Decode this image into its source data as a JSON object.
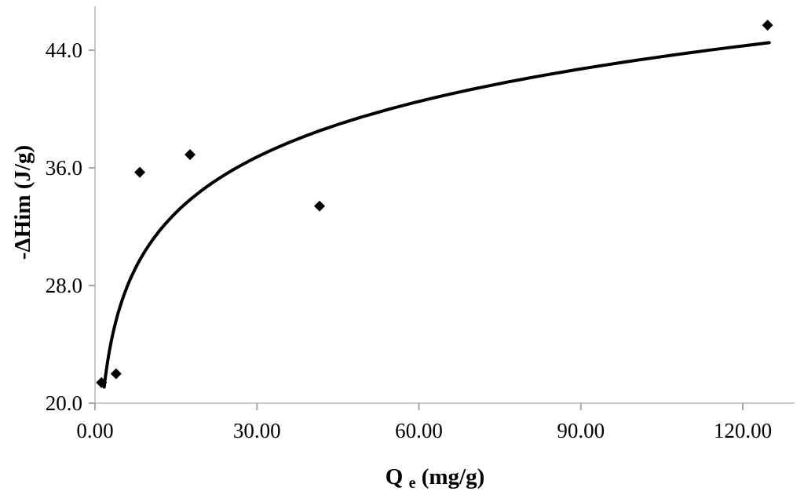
{
  "chart_data": {
    "type": "scatter",
    "title": "",
    "xlabel_main": "Q",
    "xlabel_sub": "e",
    "xlabel_rest": " (mg/g)",
    "ylabel": "-ΔHim (J/g)",
    "x_axis": {
      "min": 0,
      "max": 129.6,
      "ticks": [
        {
          "v": 0,
          "label": "0.00"
        },
        {
          "v": 30,
          "label": "30.00"
        },
        {
          "v": 60,
          "label": "60.00"
        },
        {
          "v": 90,
          "label": "90.00"
        },
        {
          "v": 120,
          "label": "120.00"
        }
      ]
    },
    "y_axis": {
      "min": 20,
      "max": 47,
      "ticks": [
        {
          "v": 20,
          "label": "20.0"
        },
        {
          "v": 28,
          "label": "28.0"
        },
        {
          "v": 36,
          "label": "36.0"
        },
        {
          "v": 44,
          "label": "44.0"
        }
      ]
    },
    "points": [
      {
        "x": 1.2,
        "y": 21.4
      },
      {
        "x": 3.9,
        "y": 22.0
      },
      {
        "x": 8.3,
        "y": 35.7
      },
      {
        "x": 17.6,
        "y": 36.9
      },
      {
        "x": 41.6,
        "y": 33.4
      },
      {
        "x": 124.6,
        "y": 45.7
      }
    ],
    "trendline": {
      "type": "logarithmic",
      "a": 5.45,
      "b": 18.2,
      "x_start": 1.7,
      "x_end": 124.9
    },
    "grid": false,
    "legend": "none",
    "colors": {
      "marker": "#000000",
      "trend": "#000000",
      "axis": "#c9c9c9",
      "tick": "#a6a6a6",
      "text": "#000000",
      "background": "#ffffff"
    }
  }
}
